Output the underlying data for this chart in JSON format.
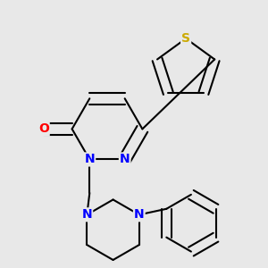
{
  "background_color": "#e8e8e8",
  "bond_color": "#000000",
  "bond_width": 1.5,
  "atom_colors": {
    "N": "#0000ff",
    "O": "#ff0000",
    "S": "#ccaa00",
    "C": "#000000"
  },
  "font_size_atom": 10
}
